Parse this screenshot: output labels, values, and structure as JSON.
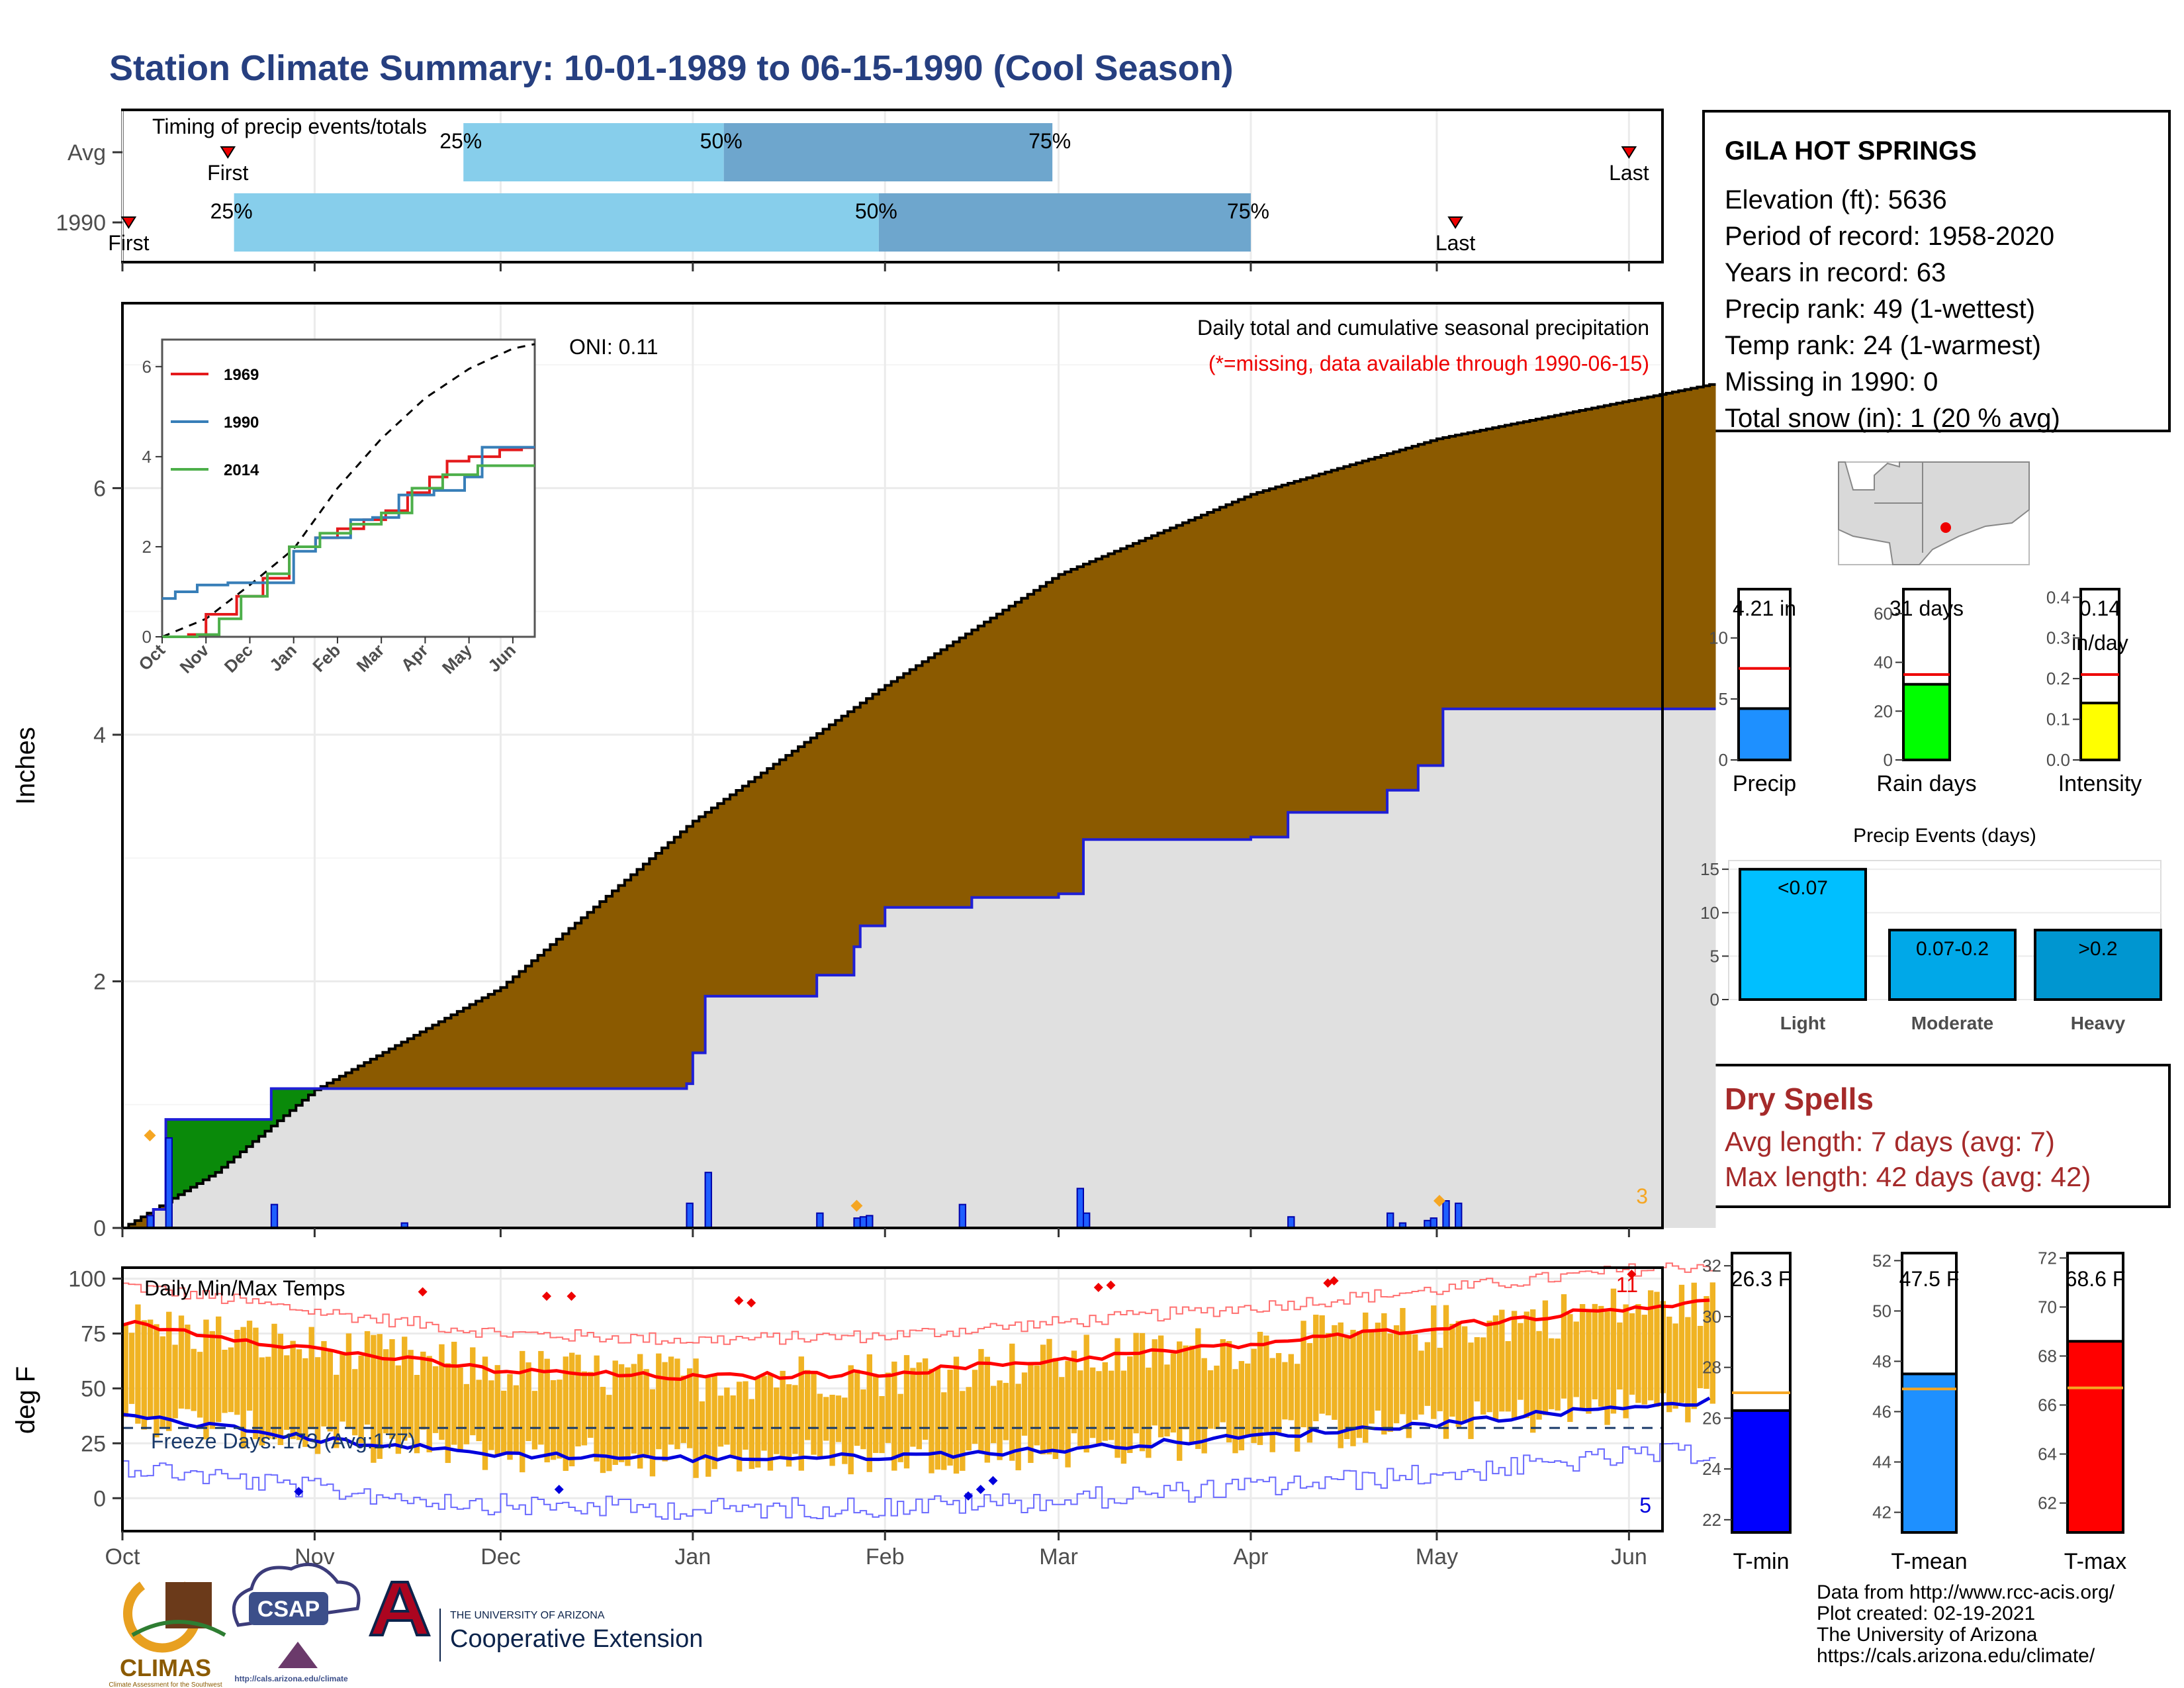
{
  "title": "Station Climate Summary: 10-01-1989 to 06-15-1990 (Cool Season)",
  "station": {
    "name": "GILA HOT SPRINGS",
    "lines": [
      "Elevation (ft): 5636",
      "Period of record: 1958-2020",
      "Years in record: 63",
      "Precip rank: 49 (1-wettest)",
      "Temp rank: 24 (1-warmest)",
      "Missing in 1990: 0",
      "Total snow (in): 1 (20 % avg)"
    ]
  },
  "timing": {
    "label": "Timing of precip events/totals",
    "rows": [
      "Avg",
      "1990"
    ],
    "pct_labels": [
      "25%",
      "50%",
      "75%"
    ],
    "first_label": "First",
    "last_label": "Last"
  },
  "precip": {
    "note": "Daily total and cumulative seasonal precipitation",
    "missing_note": "(*=missing, data available through 1990-06-15)",
    "oni": "ONI: 0.11",
    "ylabel": "Inches",
    "extreme_count": "3",
    "colors": {
      "deficit": "#8b5a00",
      "surplus": "#0a8a0a",
      "actual_fill": "#e0e0e0",
      "actual_line": "#1f1fd6",
      "daily_bar": "#1f5fff",
      "marker": "#f5a623"
    }
  },
  "inset": {
    "legend": [
      "1969",
      "1990",
      "2014"
    ],
    "colors": [
      "#e41a1c",
      "#377eb8",
      "#4daf4a"
    ]
  },
  "temps": {
    "label": "Daily Min/Max Temps",
    "ylabel": "deg F",
    "freeze_label": "Freeze Days: 173 (Avg:177)",
    "hot_count": "11",
    "cold_count": "5",
    "colors": {
      "bar": "#f0b323",
      "max_avg": "#ff0000",
      "min_avg": "#0000dd",
      "max_env": "#ff7070",
      "min_env": "#6a6aff"
    }
  },
  "months": [
    "Oct",
    "Nov",
    "Dec",
    "Jan",
    "Feb",
    "Mar",
    "Apr",
    "May",
    "Jun"
  ],
  "summary_bars": {
    "precip": {
      "label": "Precip",
      "value_text": "4.21 in",
      "value": 4.21,
      "avg": 7.5,
      "ymax": 14,
      "ticks": [
        "0",
        "5",
        "10"
      ],
      "color": "#1e90ff"
    },
    "raindays": {
      "label": "Rain days",
      "value_text": "31 days",
      "value": 31,
      "avg": 35,
      "ymax": 70,
      "ticks": [
        "0",
        "20",
        "40",
        "60"
      ],
      "color": "#00ff00"
    },
    "intensity": {
      "label": "Intensity",
      "value_text": "0.14",
      "value_text2": "in/day",
      "value": 0.14,
      "avg": 0.21,
      "ymax": 0.42,
      "ticks": [
        "0.0",
        "0.1",
        "0.2",
        "0.3",
        "0.4"
      ],
      "color": "#ffff00"
    }
  },
  "events": {
    "title": "Precip Events (days)",
    "categories": [
      "Light",
      "Moderate",
      "Heavy"
    ],
    "labels": [
      "<0.07",
      "0.07-0.2",
      ">0.2"
    ],
    "values": [
      15,
      8,
      8
    ],
    "ticks": [
      "0",
      "5",
      "10",
      "15"
    ],
    "colors": [
      "#00bfff",
      "#00a8e8",
      "#0096d0"
    ]
  },
  "dry_spells": {
    "title": "Dry Spells",
    "avg": "Avg length: 7 days (avg: 7)",
    "max": "Max length: 42 days (avg: 42)"
  },
  "temp_bars": {
    "tmin": {
      "label": "T-min",
      "value_text": "26.3 F",
      "value": 26.3,
      "avg": 27.0,
      "ymin": 21.5,
      "ymax": 32.5,
      "ticks": [
        "22",
        "24",
        "26",
        "28",
        "30",
        "32"
      ],
      "color": "#0000ff"
    },
    "tmean": {
      "label": "T-mean",
      "value_text": "47.5 F",
      "value": 47.5,
      "avg": 46.9,
      "ymin": 41.2,
      "ymax": 52.3,
      "ticks": [
        "42",
        "44",
        "46",
        "48",
        "50",
        "52"
      ],
      "color": "#1e90ff"
    },
    "tmax": {
      "label": "T-max",
      "value_text": "68.6 F",
      "value": 68.6,
      "avg": 66.7,
      "ymin": 60.8,
      "ymax": 72.2,
      "ticks": [
        "62",
        "64",
        "66",
        "68",
        "70",
        "72"
      ],
      "color": "#ff0000"
    }
  },
  "credits": [
    "Data from http://www.rcc-acis.org/",
    "Plot created: 02-19-2021",
    "The University of Arizona",
    "https://cals.arizona.edu/climate/"
  ],
  "logos": {
    "climas": "CLIMAS",
    "climas_sub": "Climate Assessment for the Southwest",
    "csap": "CSAP",
    "csap_url": "http://cals.arizona.edu/climate",
    "ua_small": "THE UNIVERSITY OF ARIZONA",
    "ua_big": "Cooperative Extension"
  },
  "chart_data": [
    {
      "type": "area",
      "name": "cumulative-precip",
      "xlabel": "",
      "ylabel": "Inches",
      "ylim": [
        0,
        7.5
      ],
      "x_range": [
        "1989-10-01",
        "1990-06-15"
      ],
      "average_cumulative": {
        "x": [
          "1989-10-01",
          "1989-10-16",
          "1989-11-01",
          "1989-12-01",
          "1990-01-01",
          "1990-02-01",
          "1990-03-01",
          "1990-04-01",
          "1990-05-01",
          "1990-06-15"
        ],
        "y": [
          0,
          0.45,
          1.12,
          1.95,
          3.3,
          4.4,
          5.3,
          5.95,
          6.4,
          6.85
        ]
      },
      "actual_cumulative": {
        "x": [
          "1989-10-01",
          "1989-10-06",
          "1989-10-08",
          "1989-10-20",
          "1989-10-25",
          "1989-12-31",
          "1990-01-01",
          "1990-01-02",
          "1990-01-03",
          "1990-01-20",
          "1990-01-21",
          "1990-01-27",
          "1990-01-28",
          "1990-02-01",
          "1990-02-15",
          "1990-03-01",
          "1990-03-05",
          "1990-04-01",
          "1990-04-07",
          "1990-04-23",
          "1990-04-28",
          "1990-05-01",
          "1990-05-02",
          "1990-06-15"
        ],
        "y": [
          0,
          0.15,
          0.88,
          0.88,
          1.13,
          1.17,
          1.42,
          1.42,
          1.88,
          1.88,
          2.05,
          2.28,
          2.45,
          2.6,
          2.68,
          2.71,
          3.15,
          3.17,
          3.37,
          3.55,
          3.75,
          3.75,
          4.21,
          4.21
        ]
      },
      "daily_bars": {
        "x": [
          "1989-10-05",
          "1989-10-08",
          "1989-10-25",
          "1989-11-15",
          "1989-12-31",
          "1990-01-03",
          "1990-01-21",
          "1990-01-27",
          "1990-01-28",
          "1990-01-29",
          "1990-02-13",
          "1990-03-04",
          "1990-03-05",
          "1990-04-07",
          "1990-04-23",
          "1990-04-25",
          "1990-04-29",
          "1990-04-30",
          "1990-05-02",
          "1990-05-04"
        ],
        "y": [
          0.1,
          0.73,
          0.19,
          0.04,
          0.2,
          0.45,
          0.12,
          0.08,
          0.09,
          0.1,
          0.19,
          0.32,
          0.12,
          0.09,
          0.12,
          0.04,
          0.06,
          0.08,
          0.22,
          0.2
        ]
      }
    },
    {
      "type": "line",
      "name": "inset-cumulative-by-year",
      "ylim": [
        0,
        6.6
      ],
      "series": [
        {
          "name": "1969",
          "x": [
            "Oct",
            "Nov",
            "Dec",
            "Jan",
            "Feb",
            "Mar",
            "Apr",
            "May",
            "Jun"
          ],
          "y": [
            0,
            0.05,
            1.0,
            2.0,
            2.5,
            2.9,
            3.6,
            4.0,
            4.2
          ]
        },
        {
          "name": "1990",
          "x": [
            "Oct",
            "Nov",
            "Dec",
            "Jan",
            "Feb",
            "Mar",
            "Apr",
            "May",
            "Jun"
          ],
          "y": [
            0.9,
            1.2,
            1.2,
            1.9,
            2.6,
            3.15,
            3.55,
            4.21,
            4.21
          ]
        },
        {
          "name": "2014",
          "x": [
            "Oct",
            "Nov",
            "Dec",
            "Jan",
            "Feb",
            "Mar",
            "Apr",
            "May",
            "Jun"
          ],
          "y": [
            0,
            0.1,
            1.4,
            2.2,
            2.6,
            2.8,
            3.3,
            3.8,
            3.8
          ]
        }
      ]
    },
    {
      "type": "bar",
      "name": "daily-temps",
      "ylabel": "deg F",
      "ylim": [
        -15,
        105
      ],
      "avg_max": {
        "x": [
          "Oct",
          "Nov",
          "Dec",
          "Jan",
          "Feb",
          "Mar",
          "Apr",
          "May",
          "Jun"
        ],
        "y": [
          80,
          68,
          58,
          55,
          57,
          63,
          70,
          78,
          87
        ]
      },
      "avg_min": {
        "x": [
          "Oct",
          "Nov",
          "Dec",
          "Jan",
          "Feb",
          "Mar",
          "Apr",
          "May",
          "Jun"
        ],
        "y": [
          38,
          27,
          20,
          18,
          19,
          22,
          28,
          34,
          42
        ]
      }
    },
    {
      "type": "bar",
      "name": "precip-events",
      "categories": [
        "Light",
        "Moderate",
        "Heavy"
      ],
      "values": [
        15,
        8,
        8
      ],
      "ylim": [
        0,
        16
      ]
    }
  ]
}
